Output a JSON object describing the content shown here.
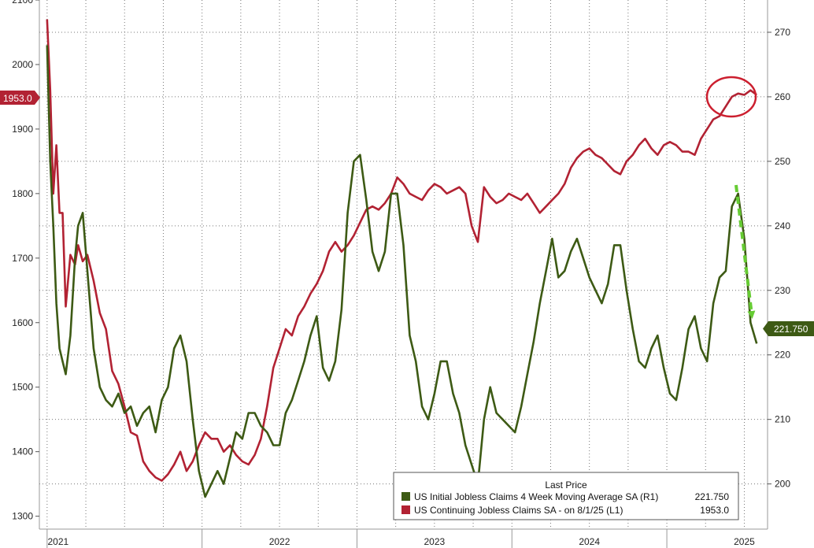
{
  "chart_data": {
    "type": "line",
    "x_axis": {
      "labels": [
        "2021",
        "2022",
        "2023",
        "2024",
        "2025"
      ]
    },
    "left_axis": {
      "min": 1280,
      "max": 2100,
      "ticks": [
        "1300",
        "1400",
        "1500",
        "1600",
        "1700",
        "1800",
        "1900",
        "2000",
        "2100"
      ]
    },
    "right_axis": {
      "min": 193,
      "max": 275,
      "ticks": [
        "200",
        "210",
        "220",
        "230",
        "240",
        "250",
        "260",
        "270"
      ]
    },
    "grid": true,
    "legend": {
      "position": "bottom-right",
      "title": "Last Price",
      "entries": [
        {
          "label": "US Initial Jobless Claims 4 Week Moving Average SA  (R1)",
          "value": "221.750",
          "color": "#3d5a14"
        },
        {
          "label": "US Continuing Jobless Claims SA -  on 8/1/25  (L1)",
          "value": "1953.0",
          "color": "#b22233"
        }
      ]
    },
    "last_value_labels": {
      "left": "1953.0",
      "right": "221.750"
    },
    "series": [
      {
        "name": "US Continuing Jobless Claims SA",
        "axis": "left",
        "color": "#b22233",
        "x": [
          2021.0,
          2021.02,
          2021.04,
          2021.06,
          2021.08,
          2021.1,
          2021.12,
          2021.15,
          2021.18,
          2021.2,
          2021.23,
          2021.26,
          2021.3,
          2021.34,
          2021.38,
          2021.42,
          2021.46,
          2021.5,
          2021.54,
          2021.58,
          2021.62,
          2021.66,
          2021.7,
          2021.74,
          2021.78,
          2021.82,
          2021.86,
          2021.9,
          2021.94,
          2021.98,
          2022.02,
          2022.06,
          2022.1,
          2022.14,
          2022.18,
          2022.22,
          2022.26,
          2022.3,
          2022.34,
          2022.38,
          2022.42,
          2022.46,
          2022.5,
          2022.54,
          2022.58,
          2022.62,
          2022.66,
          2022.7,
          2022.74,
          2022.78,
          2022.82,
          2022.86,
          2022.9,
          2022.94,
          2022.98,
          2023.02,
          2023.06,
          2023.1,
          2023.14,
          2023.18,
          2023.22,
          2023.26,
          2023.3,
          2023.34,
          2023.38,
          2023.42,
          2023.46,
          2023.5,
          2023.54,
          2023.58,
          2023.62,
          2023.66,
          2023.7,
          2023.74,
          2023.78,
          2023.82,
          2023.86,
          2023.9,
          2023.94,
          2023.98,
          2024.02,
          2024.06,
          2024.1,
          2024.14,
          2024.18,
          2024.22,
          2024.26,
          2024.3,
          2024.34,
          2024.38,
          2024.42,
          2024.46,
          2024.5,
          2024.54,
          2024.58,
          2024.62,
          2024.66,
          2024.7,
          2024.74,
          2024.78,
          2024.82,
          2024.86,
          2024.9,
          2024.94,
          2024.98,
          2025.02,
          2025.06,
          2025.1,
          2025.14,
          2025.18,
          2025.22,
          2025.26,
          2025.3,
          2025.34,
          2025.38,
          2025.42,
          2025.46,
          2025.5,
          2025.54,
          2025.58
        ],
        "values": [
          2070,
          1960,
          1800,
          1875,
          1770,
          1770,
          1625,
          1705,
          1690,
          1720,
          1695,
          1705,
          1665,
          1615,
          1590,
          1525,
          1505,
          1470,
          1430,
          1425,
          1385,
          1370,
          1360,
          1355,
          1365,
          1380,
          1400,
          1370,
          1385,
          1410,
          1430,
          1420,
          1420,
          1400,
          1410,
          1395,
          1385,
          1380,
          1395,
          1420,
          1470,
          1530,
          1560,
          1590,
          1580,
          1610,
          1625,
          1645,
          1660,
          1680,
          1710,
          1725,
          1710,
          1720,
          1735,
          1755,
          1775,
          1780,
          1775,
          1785,
          1800,
          1825,
          1815,
          1800,
          1795,
          1790,
          1805,
          1815,
          1810,
          1800,
          1805,
          1810,
          1800,
          1750,
          1725,
          1810,
          1795,
          1785,
          1790,
          1800,
          1795,
          1790,
          1800,
          1785,
          1770,
          1780,
          1790,
          1800,
          1815,
          1840,
          1855,
          1865,
          1870,
          1860,
          1855,
          1845,
          1835,
          1830,
          1850,
          1860,
          1875,
          1885,
          1870,
          1860,
          1875,
          1880,
          1875,
          1865,
          1865,
          1860,
          1885,
          1900,
          1915,
          1920,
          1935,
          1950,
          1955,
          1953,
          1960,
          1953
        ],
        "last": 1953.0
      },
      {
        "name": "US Initial Jobless Claims 4 Week Moving Average SA",
        "axis": "right",
        "color": "#3d5a14",
        "x": [
          2021.0,
          2021.02,
          2021.04,
          2021.06,
          2021.08,
          2021.1,
          2021.12,
          2021.15,
          2021.18,
          2021.2,
          2021.23,
          2021.26,
          2021.3,
          2021.34,
          2021.38,
          2021.42,
          2021.46,
          2021.5,
          2021.54,
          2021.58,
          2021.62,
          2021.66,
          2021.7,
          2021.74,
          2021.78,
          2021.82,
          2021.86,
          2021.9,
          2021.94,
          2021.98,
          2022.02,
          2022.06,
          2022.1,
          2022.14,
          2022.18,
          2022.22,
          2022.26,
          2022.3,
          2022.34,
          2022.38,
          2022.42,
          2022.46,
          2022.5,
          2022.54,
          2022.58,
          2022.62,
          2022.66,
          2022.7,
          2022.74,
          2022.78,
          2022.82,
          2022.86,
          2022.9,
          2022.94,
          2022.98,
          2023.02,
          2023.06,
          2023.1,
          2023.14,
          2023.18,
          2023.22,
          2023.26,
          2023.3,
          2023.34,
          2023.38,
          2023.42,
          2023.46,
          2023.5,
          2023.54,
          2023.58,
          2023.62,
          2023.66,
          2023.7,
          2023.74,
          2023.78,
          2023.82,
          2023.86,
          2023.9,
          2023.94,
          2023.98,
          2024.02,
          2024.06,
          2024.1,
          2024.14,
          2024.18,
          2024.22,
          2024.26,
          2024.3,
          2024.34,
          2024.38,
          2024.42,
          2024.46,
          2024.5,
          2024.54,
          2024.58,
          2024.62,
          2024.66,
          2024.7,
          2024.74,
          2024.78,
          2024.82,
          2024.86,
          2024.9,
          2024.94,
          2024.98,
          2025.02,
          2025.06,
          2025.1,
          2025.14,
          2025.18,
          2025.22,
          2025.26,
          2025.3,
          2025.34,
          2025.38,
          2025.42,
          2025.46,
          2025.5,
          2025.54,
          2025.58
        ],
        "values": [
          268,
          250,
          240,
          228,
          221,
          219,
          217,
          223,
          235,
          240,
          242,
          233,
          221,
          215,
          213,
          212,
          214,
          211,
          212,
          209,
          211,
          212,
          208,
          213,
          215,
          221,
          223,
          219,
          210,
          202,
          198,
          200,
          202,
          200,
          204,
          208,
          207,
          211,
          211,
          209,
          208,
          206,
          206,
          211,
          213,
          216,
          219,
          223,
          226,
          218,
          216,
          219,
          227,
          242,
          250,
          251,
          244,
          236,
          233,
          236,
          245,
          245,
          237,
          223,
          219,
          212,
          210,
          214,
          219,
          219,
          214,
          211,
          206,
          203,
          200,
          210,
          215,
          211,
          210,
          209,
          208,
          212,
          217,
          222,
          228,
          233,
          238,
          232,
          233,
          236,
          238,
          235,
          232,
          230,
          228,
          231,
          237,
          237,
          230,
          224,
          219,
          218,
          221,
          223,
          218,
          214,
          213,
          218,
          224,
          226,
          221,
          219,
          228,
          232,
          233,
          243,
          245,
          238,
          225,
          221.75
        ],
        "last": 221.75
      }
    ]
  }
}
